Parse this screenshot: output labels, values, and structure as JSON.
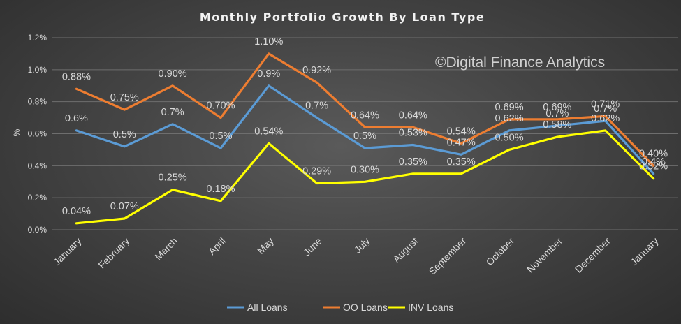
{
  "chart_data": {
    "type": "line",
    "title": "Monthly  Portfolio  Growth  By Loan Type",
    "watermark": "©Digital Finance Analytics",
    "ylabel": "%",
    "ylim": [
      0,
      1.2
    ],
    "yticks": [
      "0.0%",
      "0.2%",
      "0.4%",
      "0.6%",
      "0.8%",
      "1.0%",
      "1.2%"
    ],
    "grid": true,
    "legend_position": "bottom",
    "categories": [
      "January",
      "February",
      "March",
      "April",
      "May",
      "June",
      "July",
      "August",
      "September",
      "October",
      "November",
      "December",
      "January"
    ],
    "series": [
      {
        "name": "All Loans",
        "color": "#5b9bd5",
        "values": [
          0.62,
          0.52,
          0.66,
          0.51,
          0.9,
          0.7,
          0.51,
          0.53,
          0.47,
          0.62,
          0.65,
          0.68,
          0.35
        ],
        "labels": [
          "0.6%",
          "0.5%",
          "0.7%",
          "0.5%",
          "0.9%",
          "0.7%",
          "0.5%",
          "0.53%",
          "0.47%",
          "0.62%",
          "0.7%",
          "0.7%",
          "0.4%"
        ]
      },
      {
        "name": "OO Loans",
        "color": "#ed7d31",
        "values": [
          0.88,
          0.75,
          0.9,
          0.7,
          1.1,
          0.92,
          0.64,
          0.64,
          0.54,
          0.69,
          0.69,
          0.71,
          0.4
        ],
        "labels": [
          "0.88%",
          "0.75%",
          "0.90%",
          "0.70%",
          "1.10%",
          "0.92%",
          "0.64%",
          "0.64%",
          "0.54%",
          "0.69%",
          "0.69%",
          "0.71%",
          "0.40%"
        ]
      },
      {
        "name": "INV Loans",
        "color": "#ffff00",
        "values": [
          0.04,
          0.07,
          0.25,
          0.18,
          0.54,
          0.29,
          0.3,
          0.35,
          0.35,
          0.5,
          0.58,
          0.62,
          0.32
        ],
        "labels": [
          "0.04%",
          "0.07%",
          "0.25%",
          "0.18%",
          "0.54%",
          "0.29%",
          "0.30%",
          "0.35%",
          "0.35%",
          "0.50%",
          "0.58%",
          "0.62%",
          "0.32%"
        ]
      }
    ]
  }
}
